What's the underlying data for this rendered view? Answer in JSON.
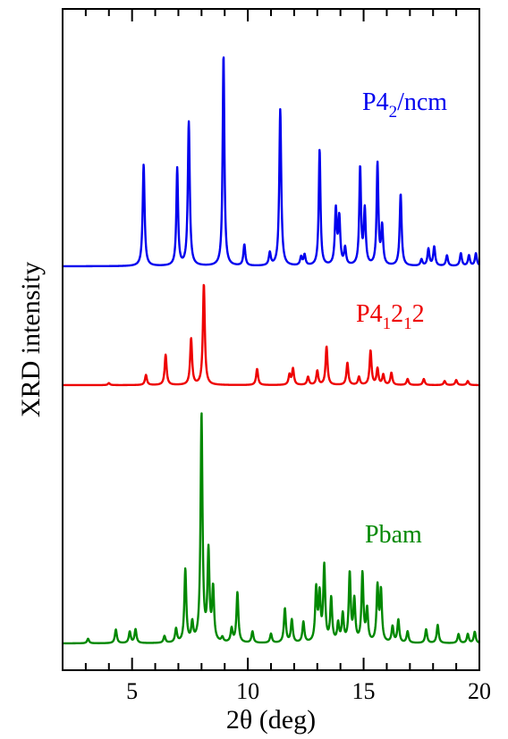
{
  "chart_data": {
    "type": "line",
    "xlabel": "2θ (deg)",
    "ylabel": "XRD intensity",
    "xlim": [
      2,
      20
    ],
    "x_ticks": [
      5,
      10,
      15,
      20
    ],
    "x_minor_step": 1,
    "grid": false,
    "legend": "inline labels beside each trace",
    "series": [
      {
        "name": "P4_2/ncm",
        "label_main": "P4",
        "label_sub": "2",
        "label_rest": "/ncm",
        "color": "#0000ee",
        "peaks": [
          [
            5.5,
            0.48,
            0.05
          ],
          [
            6.95,
            0.46,
            0.045
          ],
          [
            7.45,
            0.68,
            0.05
          ],
          [
            8.95,
            1.0,
            0.045
          ],
          [
            9.85,
            0.1,
            0.05
          ],
          [
            10.95,
            0.06,
            0.05
          ],
          [
            11.4,
            0.74,
            0.05
          ],
          [
            12.3,
            0.04,
            0.05
          ],
          [
            12.45,
            0.05,
            0.05
          ],
          [
            13.1,
            0.55,
            0.045
          ],
          [
            13.8,
            0.26,
            0.05
          ],
          [
            13.95,
            0.22,
            0.05
          ],
          [
            14.2,
            0.08,
            0.05
          ],
          [
            14.85,
            0.46,
            0.045
          ],
          [
            15.05,
            0.26,
            0.05
          ],
          [
            15.6,
            0.48,
            0.045
          ],
          [
            15.8,
            0.18,
            0.05
          ],
          [
            16.6,
            0.34,
            0.05
          ],
          [
            17.5,
            0.03,
            0.05
          ],
          [
            17.8,
            0.08,
            0.05
          ],
          [
            18.05,
            0.09,
            0.05
          ],
          [
            18.6,
            0.05,
            0.05
          ],
          [
            19.2,
            0.06,
            0.05
          ],
          [
            19.55,
            0.05,
            0.05
          ],
          [
            19.85,
            0.06,
            0.05
          ]
        ]
      },
      {
        "name": "P4_12_12",
        "label_main": "P4",
        "label_sub": "1",
        "label_rest": "2",
        "label_sub2": "1",
        "label_rest2": "2",
        "color": "#ee0000",
        "peaks": [
          [
            4.0,
            0.02,
            0.05
          ],
          [
            5.6,
            0.1,
            0.05
          ],
          [
            6.45,
            0.3,
            0.05
          ],
          [
            7.55,
            0.46,
            0.05
          ],
          [
            8.1,
            1.0,
            0.05
          ],
          [
            10.4,
            0.16,
            0.05
          ],
          [
            11.8,
            0.1,
            0.05
          ],
          [
            11.95,
            0.16,
            0.05
          ],
          [
            12.6,
            0.08,
            0.05
          ],
          [
            13.0,
            0.14,
            0.05
          ],
          [
            13.4,
            0.38,
            0.05
          ],
          [
            14.3,
            0.22,
            0.05
          ],
          [
            14.8,
            0.08,
            0.05
          ],
          [
            15.3,
            0.34,
            0.05
          ],
          [
            15.6,
            0.16,
            0.05
          ],
          [
            15.85,
            0.1,
            0.05
          ],
          [
            16.2,
            0.12,
            0.05
          ],
          [
            16.9,
            0.06,
            0.05
          ],
          [
            17.6,
            0.06,
            0.05
          ],
          [
            18.5,
            0.04,
            0.05
          ],
          [
            19.0,
            0.05,
            0.05
          ],
          [
            19.5,
            0.04,
            0.05
          ]
        ]
      },
      {
        "name": "Pbam",
        "label_main": "Pbam",
        "color": "#008800",
        "peaks": [
          [
            3.1,
            0.02,
            0.05
          ],
          [
            4.3,
            0.06,
            0.05
          ],
          [
            4.9,
            0.05,
            0.05
          ],
          [
            5.15,
            0.06,
            0.05
          ],
          [
            6.4,
            0.03,
            0.05
          ],
          [
            6.9,
            0.06,
            0.05
          ],
          [
            7.3,
            0.32,
            0.05
          ],
          [
            7.6,
            0.08,
            0.05
          ],
          [
            8.0,
            1.0,
            0.05
          ],
          [
            8.3,
            0.39,
            0.05
          ],
          [
            8.5,
            0.23,
            0.05
          ],
          [
            8.9,
            0.02,
            0.05
          ],
          [
            9.3,
            0.06,
            0.05
          ],
          [
            9.55,
            0.22,
            0.05
          ],
          [
            10.2,
            0.05,
            0.05
          ],
          [
            11.0,
            0.04,
            0.05
          ],
          [
            11.6,
            0.15,
            0.05
          ],
          [
            11.9,
            0.1,
            0.05
          ],
          [
            12.4,
            0.09,
            0.05
          ],
          [
            12.95,
            0.23,
            0.05
          ],
          [
            13.1,
            0.2,
            0.05
          ],
          [
            13.3,
            0.33,
            0.05
          ],
          [
            13.6,
            0.19,
            0.05
          ],
          [
            13.9,
            0.08,
            0.05
          ],
          [
            14.1,
            0.12,
            0.05
          ],
          [
            14.4,
            0.3,
            0.05
          ],
          [
            14.6,
            0.18,
            0.05
          ],
          [
            14.95,
            0.3,
            0.05
          ],
          [
            15.15,
            0.14,
            0.05
          ],
          [
            15.6,
            0.24,
            0.05
          ],
          [
            15.75,
            0.22,
            0.05
          ],
          [
            16.25,
            0.07,
            0.05
          ],
          [
            16.5,
            0.1,
            0.05
          ],
          [
            16.9,
            0.05,
            0.05
          ],
          [
            17.7,
            0.06,
            0.05
          ],
          [
            18.2,
            0.08,
            0.05
          ],
          [
            19.1,
            0.04,
            0.05
          ],
          [
            19.5,
            0.04,
            0.05
          ],
          [
            19.8,
            0.05,
            0.05
          ]
        ]
      }
    ]
  }
}
